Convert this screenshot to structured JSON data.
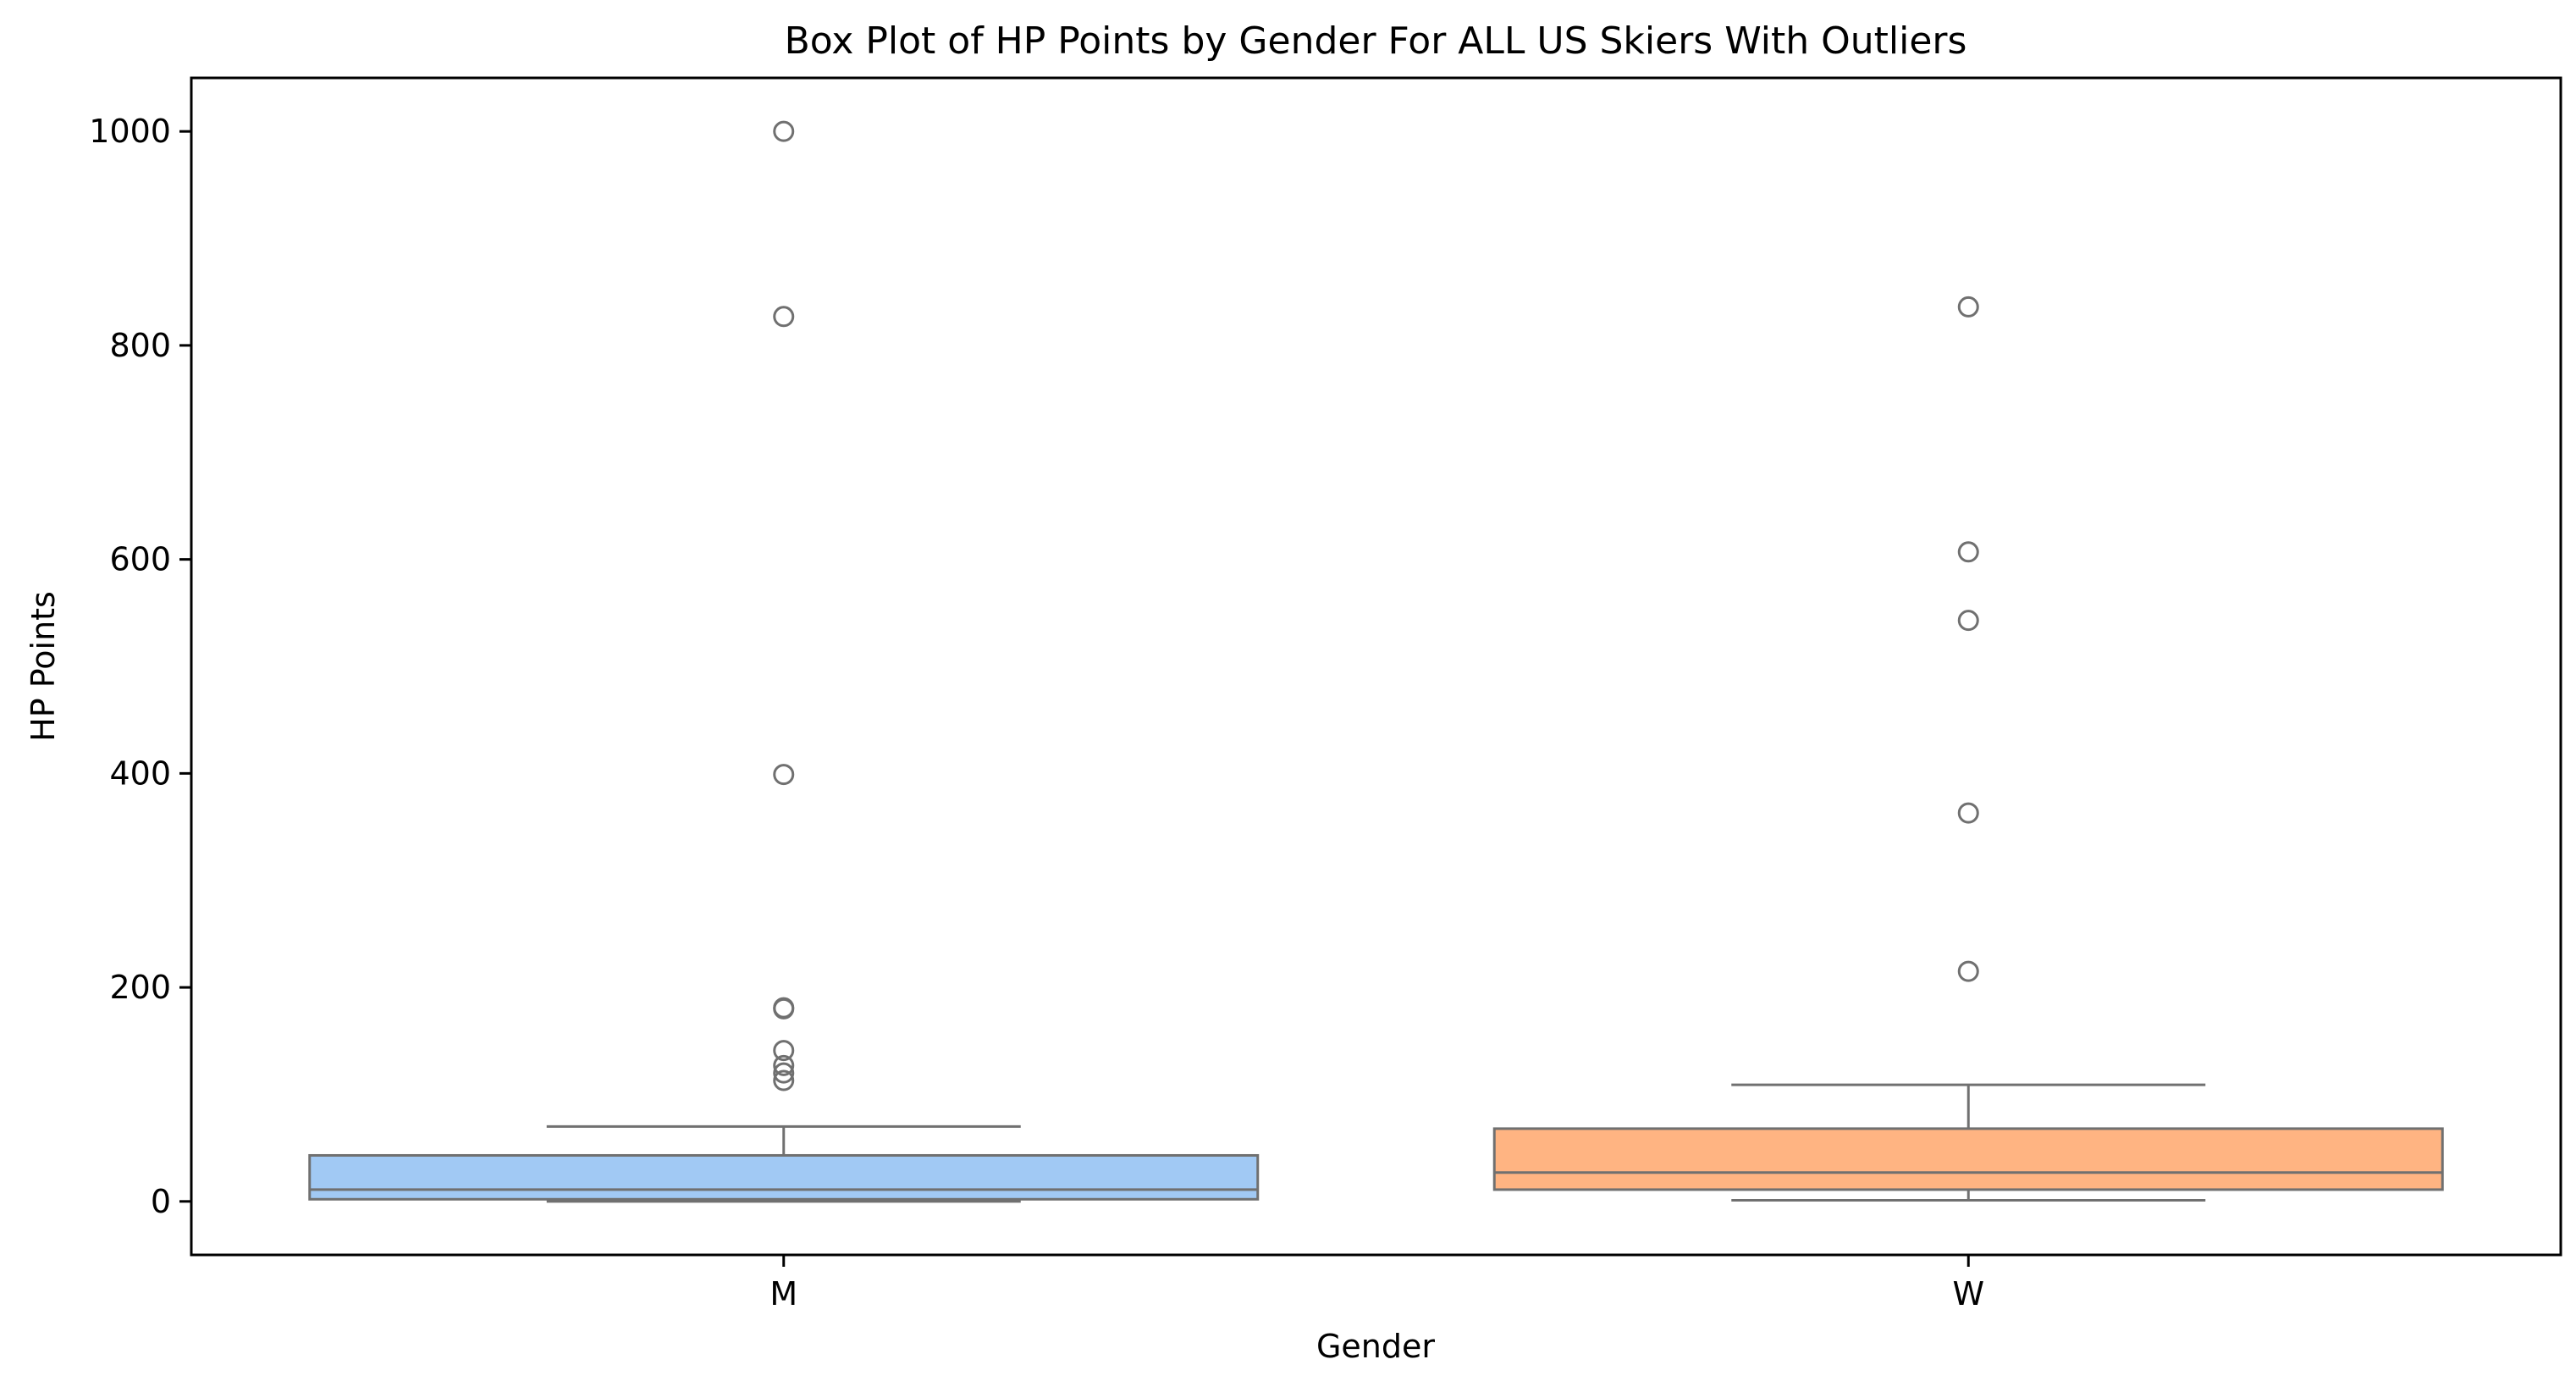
{
  "chart_data": {
    "type": "box",
    "title": "Box Plot of HP Points by Gender For ALL US Skiers With Outliers",
    "xlabel": "Gender",
    "ylabel": "HP Points",
    "ylim": [
      -50,
      1050
    ],
    "yticks": [
      0,
      200,
      400,
      600,
      800,
      1000
    ],
    "grid": false,
    "legend": "none",
    "categories": [
      "M",
      "W"
    ],
    "series": [
      {
        "category": "M",
        "color": "#a1c9f4",
        "whisker_low": 0,
        "q1": 2,
        "median": 11,
        "q3": 43,
        "whisker_high": 70,
        "outliers": [
          113,
          120,
          127,
          141,
          180,
          181,
          399,
          827,
          1000
        ]
      },
      {
        "category": "W",
        "color": "#ffb482",
        "whisker_low": 1,
        "q1": 11,
        "median": 27,
        "q3": 68,
        "whisker_high": 109,
        "outliers": [
          215,
          363,
          543,
          607,
          836
        ]
      }
    ]
  }
}
